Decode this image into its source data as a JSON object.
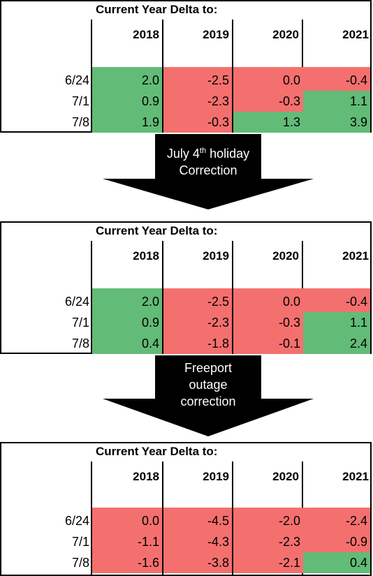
{
  "tables": [
    {
      "title": "Current Year Delta to:",
      "years": [
        "2018",
        "2019",
        "2020",
        "2021"
      ],
      "rows": [
        {
          "label": "6/24",
          "values": [
            "2.0",
            "-2.5",
            "0.0",
            "-0.4"
          ],
          "signs": [
            "pos",
            "neg",
            "neg",
            "neg"
          ]
        },
        {
          "label": "7/1",
          "values": [
            "0.9",
            "-2.3",
            "-0.3",
            "1.1"
          ],
          "signs": [
            "pos",
            "neg",
            "neg",
            "pos"
          ]
        },
        {
          "label": "7/8",
          "values": [
            "1.9",
            "-0.3",
            "1.3",
            "3.9"
          ],
          "signs": [
            "pos",
            "neg",
            "pos",
            "pos"
          ]
        }
      ]
    },
    {
      "title": "Current Year Delta to:",
      "years": [
        "2018",
        "2019",
        "2020",
        "2021"
      ],
      "rows": [
        {
          "label": "6/24",
          "values": [
            "2.0",
            "-2.5",
            "0.0",
            "-0.4"
          ],
          "signs": [
            "pos",
            "neg",
            "neg",
            "neg"
          ]
        },
        {
          "label": "7/1",
          "values": [
            "0.9",
            "-2.3",
            "-0.3",
            "1.1"
          ],
          "signs": [
            "pos",
            "neg",
            "neg",
            "pos"
          ]
        },
        {
          "label": "7/8",
          "values": [
            "0.4",
            "-1.8",
            "-0.1",
            "2.4"
          ],
          "signs": [
            "pos",
            "neg",
            "neg",
            "pos"
          ]
        }
      ]
    },
    {
      "title": "Current Year Delta to:",
      "years": [
        "2018",
        "2019",
        "2020",
        "2021"
      ],
      "rows": [
        {
          "label": "6/24",
          "values": [
            "0.0",
            "-4.5",
            "-2.0",
            "-2.4"
          ],
          "signs": [
            "neg",
            "neg",
            "neg",
            "neg"
          ]
        },
        {
          "label": "7/1",
          "values": [
            "-1.1",
            "-4.3",
            "-2.3",
            "-0.9"
          ],
          "signs": [
            "neg",
            "neg",
            "neg",
            "neg"
          ]
        },
        {
          "label": "7/8",
          "values": [
            "-1.6",
            "-3.8",
            "-2.1",
            "0.4"
          ],
          "signs": [
            "neg",
            "neg",
            "neg",
            "pos"
          ]
        }
      ]
    }
  ],
  "arrows": [
    {
      "line1": "July 4",
      "sup": "th",
      "line1_rest": " holiday",
      "line2": "Correction"
    },
    {
      "line1": "Freeport",
      "line2": "outage",
      "line3": "correction"
    }
  ],
  "colors": {
    "positive": "#62bb77",
    "negative": "#f4706e"
  }
}
